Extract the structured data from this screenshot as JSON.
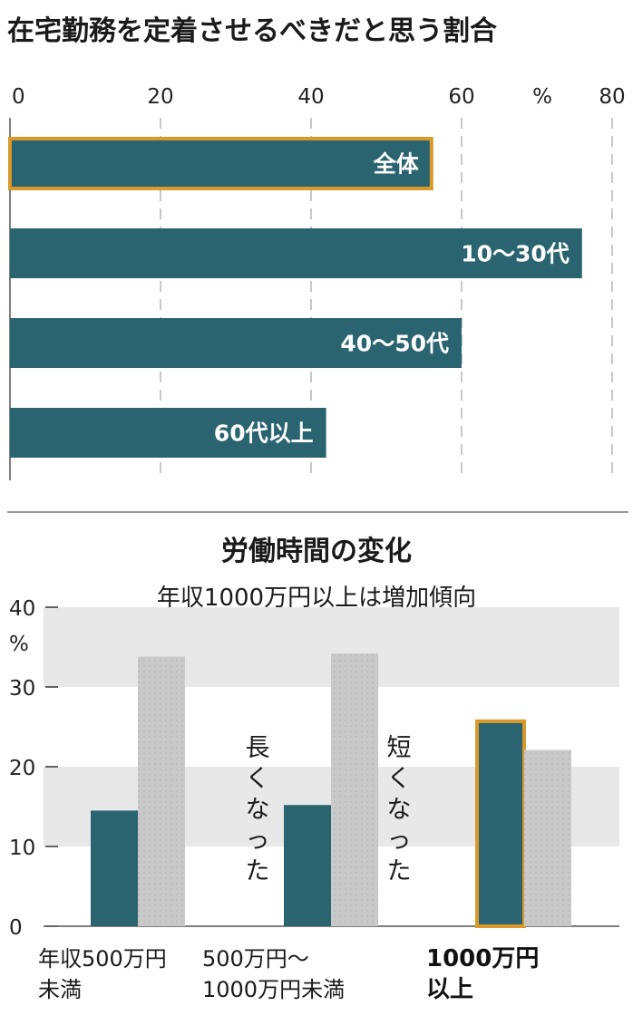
{
  "chart_data": [
    {
      "type": "bar",
      "orientation": "horizontal",
      "title": "在宅勤務を定着させるべきだと思う割合",
      "unit": "%",
      "xlim": [
        0,
        80
      ],
      "ticks": [
        "0",
        "20",
        "40",
        "60",
        "80"
      ],
      "grid": true,
      "categories": [
        "全体",
        "10～30代",
        "40～50代",
        "60代以上"
      ],
      "values": [
        56,
        76,
        60,
        42
      ],
      "highlight": "全体",
      "colors": {
        "bar": "#2a6470",
        "highlight_border": "#d99a2b"
      }
    },
    {
      "type": "bar",
      "orientation": "vertical",
      "title": "労働時間の変化",
      "subtitle": "年収1000万円以上は増加傾向",
      "unit": "%",
      "ylim": [
        0,
        40
      ],
      "ticks": [
        "0",
        "10",
        "20",
        "30",
        "40"
      ],
      "categories": [
        "年収500万円未満",
        "500万円～1000万円未満",
        "1000万円以上"
      ],
      "category_lines": [
        [
          "年収500万円",
          "未満"
        ],
        [
          "500万円～",
          "1000万円未満"
        ],
        [
          "1000万円",
          "以上"
        ]
      ],
      "series": [
        {
          "name": "長くなった",
          "values": [
            14.5,
            15.2,
            25.7
          ]
        },
        {
          "name": "短くなった",
          "values": [
            33.8,
            34.2,
            22.1
          ]
        }
      ],
      "highlight": "1000万円以上",
      "colors": {
        "long": "#2a6470",
        "short": "#c9c9c9",
        "band": "#e8e8e8",
        "highlight_border": "#d99a2b"
      }
    }
  ]
}
